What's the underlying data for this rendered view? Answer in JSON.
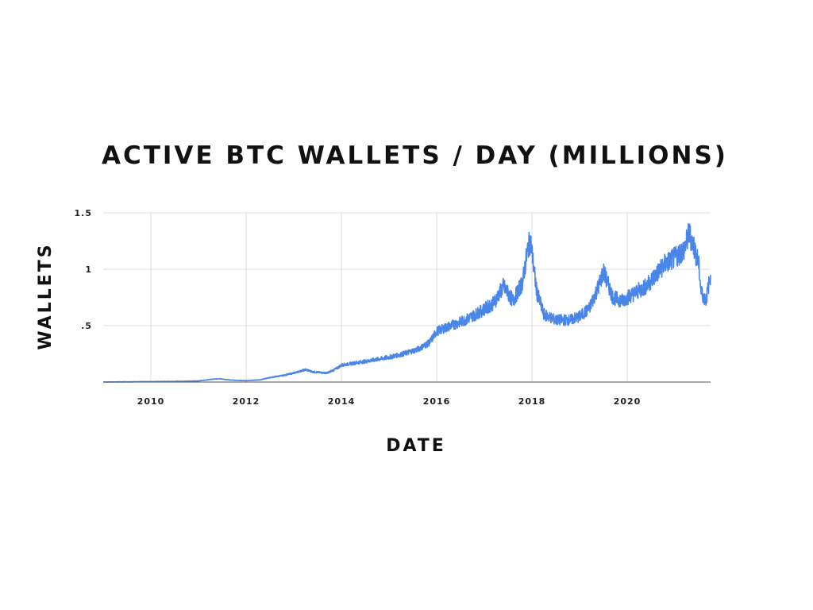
{
  "chart_data": {
    "type": "line",
    "title": "ACTIVE BTC WALLETS / DAY (MILLIONS)",
    "xlabel": "DATE",
    "ylabel": "WALLETS",
    "ylim": [
      0,
      1.5
    ],
    "xlim": [
      "2009-01",
      "2021-09"
    ],
    "y_ticks": [
      {
        "value": 0.5,
        "label": ".5"
      },
      {
        "value": 1,
        "label": "1"
      },
      {
        "value": 1.5,
        "label": "1.5"
      }
    ],
    "x_ticks": [
      {
        "value": 2010,
        "label": "2010"
      },
      {
        "value": 2012,
        "label": "2012"
      },
      {
        "value": 2014,
        "label": "2014"
      },
      {
        "value": 2016,
        "label": "2016"
      },
      {
        "value": 2018,
        "label": "2018"
      },
      {
        "value": 2020,
        "label": "2020"
      }
    ],
    "grid": true,
    "line_color": "#4a86e8",
    "series": [
      {
        "x": [
          2009.0,
          2009.5,
          2010.0,
          2010.5,
          2011.0,
          2011.3,
          2011.45,
          2011.6,
          2011.8,
          2012.0,
          2012.3,
          2012.5,
          2012.8,
          2013.0,
          2013.25,
          2013.4,
          2013.7,
          2013.9,
          2014.0,
          2014.3,
          2014.6,
          2015.0,
          2015.3,
          2015.6,
          2015.85,
          2016.0,
          2016.3,
          2016.6,
          2016.9,
          2017.2,
          2017.4,
          2017.6,
          2017.8,
          2017.92,
          2017.97,
          2018.1,
          2018.25,
          2018.5,
          2018.8,
          2019.0,
          2019.2,
          2019.4,
          2019.5,
          2019.7,
          2019.9,
          2020.0,
          2020.2,
          2020.4,
          2020.6,
          2020.8,
          2021.0,
          2021.2,
          2021.3,
          2021.4,
          2021.5,
          2021.55,
          2021.65,
          2021.75
        ],
        "y": [
          0.0,
          0.002,
          0.004,
          0.006,
          0.01,
          0.025,
          0.03,
          0.02,
          0.015,
          0.012,
          0.02,
          0.04,
          0.06,
          0.08,
          0.11,
          0.09,
          0.08,
          0.12,
          0.15,
          0.17,
          0.19,
          0.22,
          0.25,
          0.29,
          0.35,
          0.45,
          0.5,
          0.55,
          0.62,
          0.7,
          0.85,
          0.72,
          0.88,
          1.2,
          1.25,
          0.8,
          0.6,
          0.55,
          0.55,
          0.58,
          0.65,
          0.85,
          0.98,
          0.75,
          0.72,
          0.75,
          0.8,
          0.85,
          0.95,
          1.05,
          1.1,
          1.18,
          1.32,
          1.2,
          1.05,
          0.8,
          0.72,
          0.95
        ]
      }
    ]
  }
}
